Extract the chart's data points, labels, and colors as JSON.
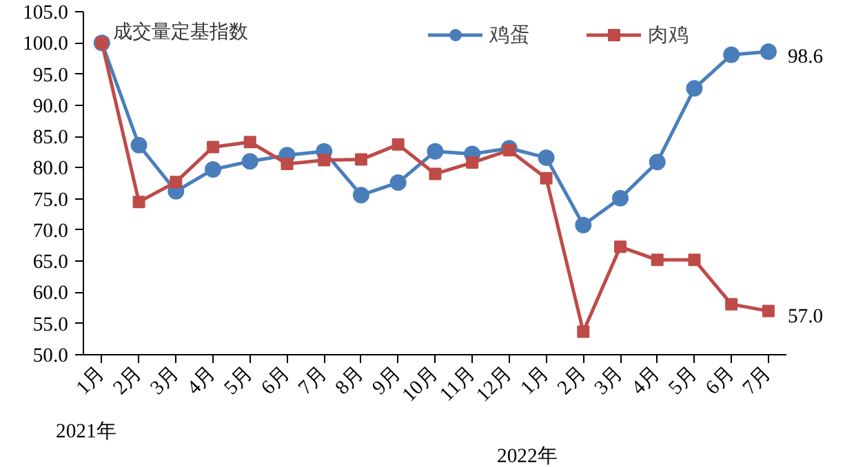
{
  "chart_data": {
    "type": "line",
    "ylabel": "成交量定基指数",
    "categories": [
      "1月",
      "2月",
      "3月",
      "4月",
      "5月",
      "6月",
      "7月",
      "8月",
      "9月",
      "10月",
      "11月",
      "12月",
      "1月",
      "2月",
      "3月",
      "4月",
      "5月",
      "6月",
      "7月"
    ],
    "series": [
      {
        "name": "鸡蛋",
        "color": "#4a7ebb",
        "marker": "circle",
        "values": [
          100.0,
          83.6,
          76.2,
          79.7,
          81.0,
          82.0,
          82.6,
          75.6,
          77.6,
          82.6,
          82.2,
          83.1,
          81.6,
          70.8,
          75.1,
          80.9,
          92.7,
          98.1,
          98.6
        ],
        "value_labels": [
          null,
          null,
          null,
          null,
          null,
          null,
          null,
          null,
          null,
          null,
          null,
          null,
          null,
          null,
          null,
          null,
          null,
          null,
          "98.6"
        ]
      },
      {
        "name": "肉鸡",
        "color": "#be4b48",
        "marker": "square",
        "values": [
          100.0,
          74.5,
          77.7,
          83.3,
          84.1,
          80.6,
          81.2,
          81.3,
          83.7,
          79.0,
          80.8,
          82.8,
          78.3,
          53.7,
          67.3,
          65.2,
          65.2,
          58.1,
          57.0
        ],
        "value_labels": [
          null,
          null,
          null,
          null,
          null,
          null,
          null,
          null,
          null,
          null,
          null,
          null,
          null,
          null,
          null,
          null,
          null,
          null,
          "57.0"
        ]
      }
    ],
    "ylim": [
      50,
      105
    ],
    "yticks": [
      {
        "value": 50,
        "label": "50.0"
      },
      {
        "value": 55,
        "label": "55.0"
      },
      {
        "value": 60,
        "label": "60.0"
      },
      {
        "value": 65,
        "label": "65.0"
      },
      {
        "value": 70,
        "label": "70.0"
      },
      {
        "value": 75,
        "label": "75.0"
      },
      {
        "value": 80,
        "label": "80.0"
      },
      {
        "value": 85,
        "label": "85.0"
      },
      {
        "value": 90,
        "label": "90.0"
      },
      {
        "value": 95,
        "label": "95.0"
      },
      {
        "value": 100,
        "label": "100.0"
      },
      {
        "value": 105,
        "label": "105.0"
      }
    ],
    "annotations": [
      "2021年",
      "2022年"
    ],
    "legend": "top right",
    "grid": false,
    "line_style": "solid"
  }
}
